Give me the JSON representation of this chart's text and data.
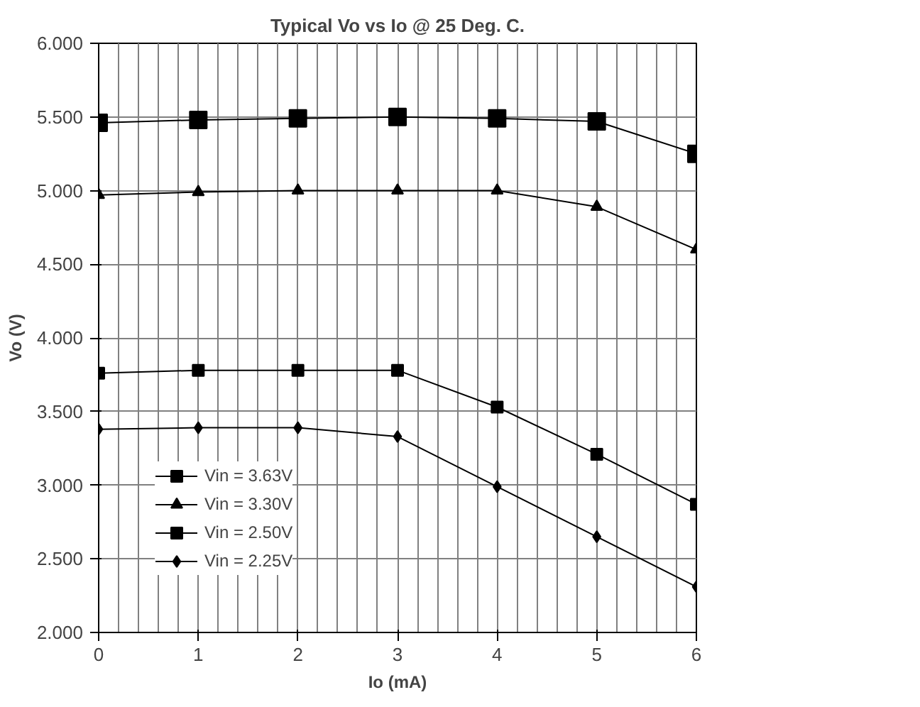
{
  "chart_data": {
    "type": "line",
    "title": "Typical Vo vs Io @ 25 Deg. C.",
    "xlabel": "Io (mA)",
    "ylabel": "Vo (V)",
    "x": [
      0,
      1,
      2,
      3,
      4,
      5,
      6
    ],
    "series": [
      {
        "name": "Vin = 3.63V",
        "color": "#000000",
        "marker": "square",
        "values": [
          5.46,
          5.48,
          5.49,
          5.5,
          5.49,
          5.47,
          5.25
        ]
      },
      {
        "name": "Vin = 3.30V",
        "color": "#000000",
        "marker": "triangle",
        "values": [
          4.97,
          4.99,
          5.0,
          5.0,
          5.0,
          4.89,
          4.6
        ]
      },
      {
        "name": "Vin = 2.50V",
        "color": "#000000",
        "marker": "square",
        "values": [
          3.76,
          3.78,
          3.78,
          3.78,
          3.53,
          3.21,
          2.87
        ]
      },
      {
        "name": "Vin = 2.25V",
        "color": "#000000",
        "marker": "diamond",
        "values": [
          3.38,
          3.39,
          3.39,
          3.33,
          2.99,
          2.65,
          2.31
        ]
      }
    ],
    "xlim": [
      0,
      6
    ],
    "xticks": [
      0,
      1,
      2,
      3,
      4,
      5,
      6
    ],
    "ylim": [
      2,
      6
    ],
    "yticks": [
      {
        "value": 2,
        "label": "2.000"
      },
      {
        "value": 2.5,
        "label": "2.500"
      },
      {
        "value": 3,
        "label": "3.000"
      },
      {
        "value": 3.5,
        "label": "3.500"
      },
      {
        "value": 4,
        "label": "4.000"
      },
      {
        "value": 4.5,
        "label": "4.500"
      },
      {
        "value": 5,
        "label": "5.000"
      },
      {
        "value": 5.5,
        "label": "5.500"
      },
      {
        "value": 6,
        "label": "6.000"
      }
    ],
    "grid": true,
    "legend": "bottom left",
    "line_style": "solid"
  }
}
